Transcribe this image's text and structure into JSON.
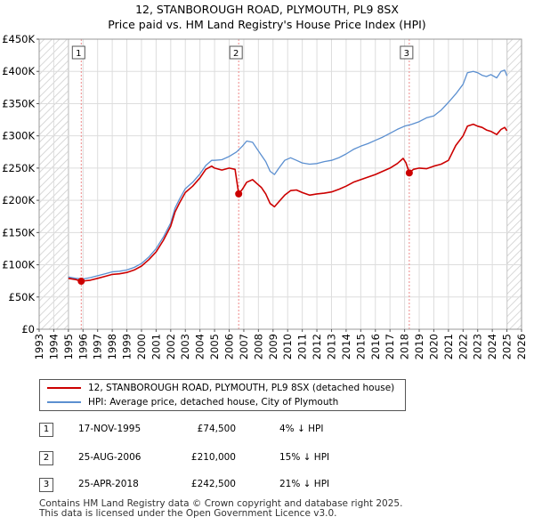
{
  "title": {
    "line1": "12, STANBOROUGH ROAD, PLYMOUTH, PL9 8SX",
    "line2": "Price paid vs. HM Land Registry's House Price Index (HPI)"
  },
  "chart_data": {
    "type": "line",
    "title": "Price paid vs. HM Land Registry's House Price Index (HPI)",
    "xlabel": "",
    "ylabel": "",
    "xlim": [
      1993,
      2026
    ],
    "ylim": [
      0,
      450000
    ],
    "y_ticks": [
      0,
      50000,
      100000,
      150000,
      200000,
      250000,
      300000,
      350000,
      400000,
      450000
    ],
    "y_tick_labels": [
      "£0",
      "£50K",
      "£100K",
      "£150K",
      "£200K",
      "£250K",
      "£300K",
      "£350K",
      "£400K",
      "£450K"
    ],
    "x_ticks": [
      1993,
      1994,
      1995,
      1996,
      1997,
      1998,
      1999,
      2000,
      2001,
      2002,
      2003,
      2004,
      2005,
      2006,
      2007,
      2008,
      2009,
      2010,
      2011,
      2012,
      2013,
      2014,
      2015,
      2016,
      2017,
      2018,
      2019,
      2020,
      2021,
      2022,
      2023,
      2024,
      2025,
      2026
    ],
    "x_tick_labels": [
      "1993",
      "1994",
      "1995",
      "1996",
      "1997",
      "1998",
      "1999",
      "2000",
      "2001",
      "2002",
      "2003",
      "2004",
      "2005",
      "2006",
      "2007",
      "2008",
      "2009",
      "2010",
      "2011",
      "2012",
      "2013",
      "2014",
      "2015",
      "2016",
      "2017",
      "2018",
      "2019",
      "2020",
      "2021",
      "2022",
      "2023",
      "2024",
      "2025",
      "2026"
    ],
    "hatched_ranges": [
      [
        1993,
        1995.0
      ],
      [
        2025.0,
        2026
      ]
    ],
    "grid": true,
    "series": [
      {
        "name": "12, STANBOROUGH ROAD, PLYMOUTH, PL9 8SX (detached house)",
        "color": "#cc0000",
        "x": [
          1995.0,
          1995.5,
          1995.88,
          1996.5,
          1997,
          1997.5,
          1998,
          1998.5,
          1999,
          1999.5,
          2000,
          2000.5,
          2001,
          2001.5,
          2002,
          2002.3,
          2002.6,
          2003,
          2003.5,
          2004,
          2004.4,
          2004.8,
          2005,
          2005.5,
          2006,
          2006.4,
          2006.65,
          2006.9,
          2007.2,
          2007.6,
          2007.9,
          2008.2,
          2008.5,
          2008.8,
          2009.1,
          2009.4,
          2009.8,
          2010.2,
          2010.6,
          2011,
          2011.5,
          2012,
          2012.5,
          2013,
          2013.5,
          2014,
          2014.5,
          2015,
          2015.5,
          2016,
          2016.5,
          2017,
          2017.5,
          2017.9,
          2018.1,
          2018.32,
          2018.6,
          2019,
          2019.5,
          2020,
          2020.5,
          2021,
          2021.5,
          2022,
          2022.3,
          2022.7,
          2023,
          2023.3,
          2023.6,
          2023.9,
          2024.3,
          2024.6,
          2024.85,
          2025.0
        ],
        "y": [
          79000,
          77000,
          74500,
          76000,
          79000,
          82000,
          85000,
          86000,
          88000,
          92000,
          98000,
          108000,
          120000,
          138000,
          160000,
          182000,
          196000,
          212000,
          222000,
          235000,
          248000,
          253000,
          250000,
          247000,
          250000,
          248000,
          210000,
          217000,
          228000,
          232000,
          226000,
          220000,
          210000,
          195000,
          190000,
          198000,
          208000,
          215000,
          216000,
          212000,
          208000,
          210000,
          211000,
          213000,
          217000,
          222000,
          228000,
          232000,
          236000,
          240000,
          245000,
          250000,
          257000,
          265000,
          258000,
          242500,
          248000,
          250000,
          249000,
          253000,
          256000,
          262000,
          285000,
          300000,
          315000,
          318000,
          315000,
          313000,
          309000,
          307000,
          302000,
          310000,
          313000,
          308000
        ]
      },
      {
        "name": "HPI: Average price, detached house, City of Plymouth",
        "color": "#5b8fd0",
        "x": [
          1995.0,
          1995.5,
          1996,
          1996.5,
          1997,
          1997.5,
          1998,
          1998.5,
          1999,
          1999.5,
          2000,
          2000.5,
          2001,
          2001.5,
          2002,
          2002.3,
          2002.6,
          2003,
          2003.5,
          2004,
          2004.4,
          2004.8,
          2005,
          2005.5,
          2006,
          2006.5,
          2006.9,
          2007.2,
          2007.6,
          2007.9,
          2008.2,
          2008.5,
          2008.8,
          2009.1,
          2009.4,
          2009.8,
          2010.2,
          2010.6,
          2011,
          2011.5,
          2012,
          2012.5,
          2013,
          2013.5,
          2014,
          2014.5,
          2015,
          2015.5,
          2016,
          2016.5,
          2017,
          2017.5,
          2018,
          2018.5,
          2019,
          2019.5,
          2020,
          2020.5,
          2021,
          2021.5,
          2022,
          2022.3,
          2022.7,
          2023,
          2023.3,
          2023.6,
          2023.9,
          2024.3,
          2024.6,
          2024.85,
          2025.0
        ],
        "y": [
          81000,
          79000,
          78000,
          80000,
          83000,
          86000,
          89000,
          90000,
          92000,
          96000,
          102000,
          112000,
          125000,
          143000,
          165000,
          188000,
          202000,
          218000,
          228000,
          241000,
          254000,
          262000,
          262000,
          263000,
          268000,
          275000,
          284000,
          292000,
          290000,
          280000,
          270000,
          260000,
          245000,
          240000,
          250000,
          262000,
          266000,
          262000,
          258000,
          256000,
          257000,
          260000,
          262000,
          266000,
          272000,
          279000,
          284000,
          288000,
          293000,
          298000,
          304000,
          310000,
          315000,
          318000,
          322000,
          328000,
          331000,
          340000,
          352000,
          365000,
          380000,
          398000,
          400000,
          398000,
          394000,
          392000,
          395000,
          390000,
          400000,
          402000,
          393000
        ]
      }
    ],
    "sale_markers": [
      {
        "label": "1",
        "x": 1995.88,
        "y": 74500
      },
      {
        "label": "2",
        "x": 2006.65,
        "y": 210000
      },
      {
        "label": "3",
        "x": 2018.32,
        "y": 242500
      }
    ]
  },
  "legend": {
    "items": [
      {
        "label": "12, STANBOROUGH ROAD, PLYMOUTH, PL9 8SX (detached house)",
        "color": "#cc0000"
      },
      {
        "label": "HPI: Average price, detached house, City of Plymouth",
        "color": "#5b8fd0"
      }
    ]
  },
  "transactions": [
    {
      "num": "1",
      "date": "17-NOV-1995",
      "price": "£74,500",
      "hpi": "4% ↓ HPI"
    },
    {
      "num": "2",
      "date": "25-AUG-2006",
      "price": "£210,000",
      "hpi": "15% ↓ HPI"
    },
    {
      "num": "3",
      "date": "25-APR-2018",
      "price": "£242,500",
      "hpi": "21% ↓ HPI"
    }
  ],
  "footer": {
    "line1": "Contains HM Land Registry data © Crown copyright and database right 2025.",
    "line2": "This data is licensed under the Open Government Licence v3.0."
  }
}
